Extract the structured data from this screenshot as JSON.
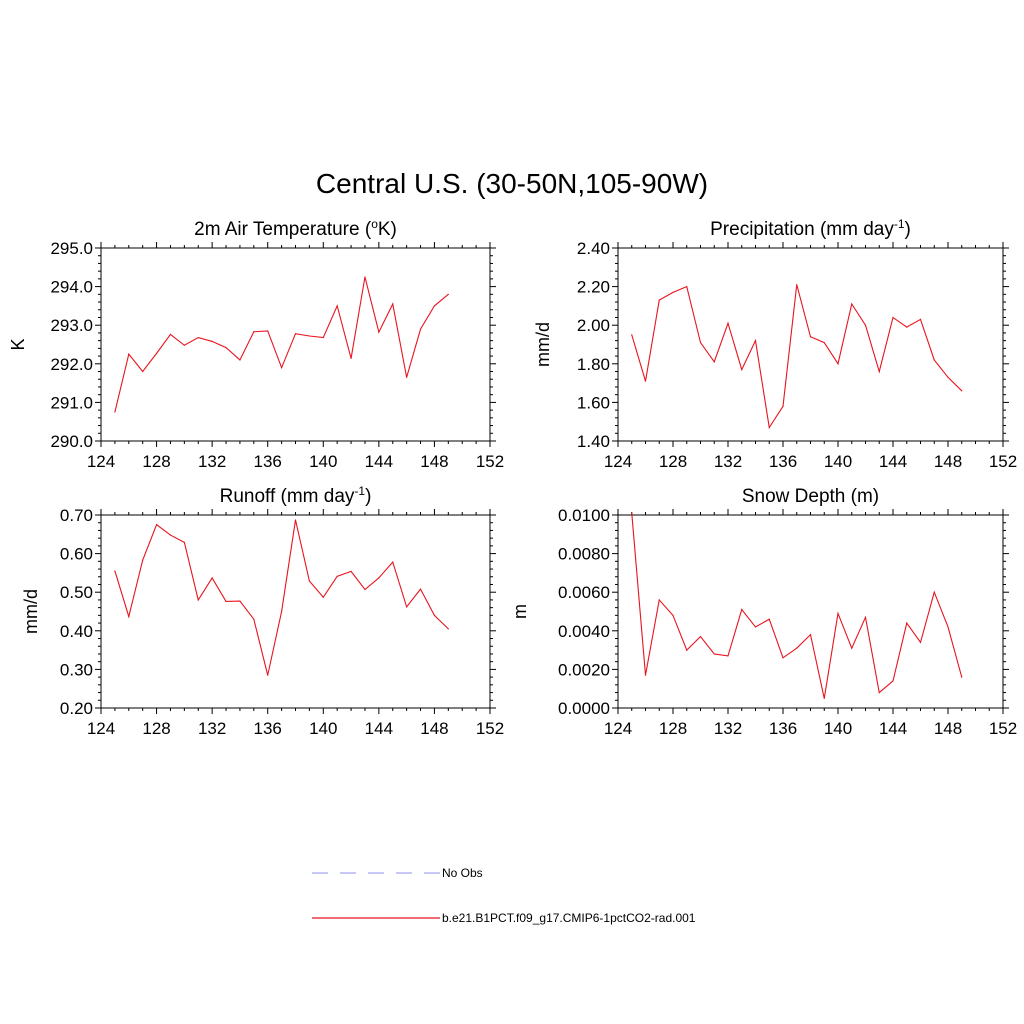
{
  "figure": {
    "title": "Central U.S. (30-50N,105-90W)"
  },
  "legend": {
    "placement": "bottom-center",
    "entries": [
      {
        "label": "No Obs",
        "color": "#a6a6f0",
        "style": "dashed"
      },
      {
        "label": "b.e21.B1PCT.f09_g17.CMIP6-1pctCO2-rad.001",
        "color": "#e8141e",
        "style": "solid"
      }
    ]
  },
  "chart_data": [
    {
      "type": "line",
      "title": "2m Air Temperature (",
      "title_sup": "o",
      "title_after": "K)",
      "xlabel": "",
      "ylabel": "K",
      "xlim": [
        124,
        152
      ],
      "ylim": [
        290.0,
        295.0
      ],
      "xticks": [
        124,
        128,
        132,
        136,
        140,
        144,
        148,
        152
      ],
      "yticks": [
        290.0,
        291.0,
        292.0,
        293.0,
        294.0,
        295.0
      ],
      "ydecimals": 1,
      "grid": false,
      "series": [
        {
          "color": "#e8141e",
          "x": [
            125,
            126,
            127,
            128,
            129,
            130,
            131,
            132,
            133,
            134,
            135,
            136,
            137,
            138,
            139,
            140,
            141,
            142,
            143,
            144,
            145,
            146,
            147,
            148,
            149
          ],
          "values": [
            290.75,
            292.25,
            291.8,
            292.27,
            292.76,
            292.48,
            292.68,
            292.58,
            292.42,
            292.1,
            292.83,
            292.85,
            291.9,
            292.78,
            292.72,
            292.68,
            293.5,
            292.14,
            294.25,
            292.82,
            293.55,
            291.65,
            292.9,
            293.5,
            293.8
          ]
        }
      ]
    },
    {
      "type": "line",
      "title": "Precipitation (mm day",
      "title_sup": "-1",
      "title_after": ")",
      "xlabel": "",
      "ylabel": "mm/d",
      "xlim": [
        124,
        152
      ],
      "ylim": [
        1.4,
        2.4
      ],
      "xticks": [
        124,
        128,
        132,
        136,
        140,
        144,
        148,
        152
      ],
      "yticks": [
        1.4,
        1.6,
        1.8,
        2.0,
        2.2,
        2.4
      ],
      "ydecimals": 2,
      "grid": false,
      "series": [
        {
          "color": "#e8141e",
          "x": [
            125,
            126,
            127,
            128,
            129,
            130,
            131,
            132,
            133,
            134,
            135,
            136,
            137,
            138,
            139,
            140,
            141,
            142,
            143,
            144,
            145,
            146,
            147,
            148,
            149
          ],
          "values": [
            1.95,
            1.71,
            2.13,
            2.17,
            2.2,
            1.91,
            1.81,
            2.01,
            1.77,
            1.92,
            1.47,
            1.58,
            2.21,
            1.94,
            1.91,
            1.8,
            2.11,
            2.0,
            1.76,
            2.04,
            1.99,
            2.03,
            1.82,
            1.73,
            1.66
          ]
        }
      ]
    },
    {
      "type": "line",
      "title": "Runoff (mm day",
      "title_sup": "-1",
      "title_after": ")",
      "xlabel": "",
      "ylabel": "mm/d",
      "xlim": [
        124,
        152
      ],
      "ylim": [
        0.2,
        0.7
      ],
      "xticks": [
        124,
        128,
        132,
        136,
        140,
        144,
        148,
        152
      ],
      "yticks": [
        0.2,
        0.3,
        0.4,
        0.5,
        0.6,
        0.7
      ],
      "ydecimals": 2,
      "grid": false,
      "series": [
        {
          "color": "#e8141e",
          "x": [
            125,
            126,
            127,
            128,
            129,
            130,
            131,
            132,
            133,
            134,
            135,
            136,
            137,
            138,
            139,
            140,
            141,
            142,
            143,
            144,
            145,
            146,
            147,
            148,
            149
          ],
          "values": [
            0.555,
            0.437,
            0.583,
            0.675,
            0.648,
            0.629,
            0.48,
            0.537,
            0.476,
            0.477,
            0.43,
            0.285,
            0.45,
            0.687,
            0.529,
            0.487,
            0.541,
            0.554,
            0.507,
            0.537,
            0.578,
            0.462,
            0.508,
            0.44,
            0.405
          ]
        }
      ]
    },
    {
      "type": "line",
      "title": "Snow Depth (m)",
      "title_sup": "",
      "title_after": "",
      "xlabel": "",
      "ylabel": "m",
      "xlim": [
        124,
        152
      ],
      "ylim": [
        0.0,
        0.01
      ],
      "xticks": [
        124,
        128,
        132,
        136,
        140,
        144,
        148,
        152
      ],
      "yticks": [
        0.0,
        0.002,
        0.004,
        0.006,
        0.008,
        0.01
      ],
      "ydecimals": 4,
      "grid": false,
      "series": [
        {
          "color": "#e8141e",
          "x": [
            125,
            126,
            127,
            128,
            129,
            130,
            131,
            132,
            133,
            134,
            135,
            136,
            137,
            138,
            139,
            140,
            141,
            142,
            143,
            144,
            145,
            146,
            147,
            148,
            149
          ],
          "values": [
            0.0101,
            0.0017,
            0.0056,
            0.0048,
            0.003,
            0.0037,
            0.0028,
            0.0027,
            0.0051,
            0.0042,
            0.0046,
            0.0026,
            0.0031,
            0.0038,
            0.0005,
            0.0049,
            0.0031,
            0.0047,
            0.0008,
            0.0014,
            0.0044,
            0.0034,
            0.006,
            0.0042,
            0.0016
          ]
        }
      ]
    }
  ]
}
